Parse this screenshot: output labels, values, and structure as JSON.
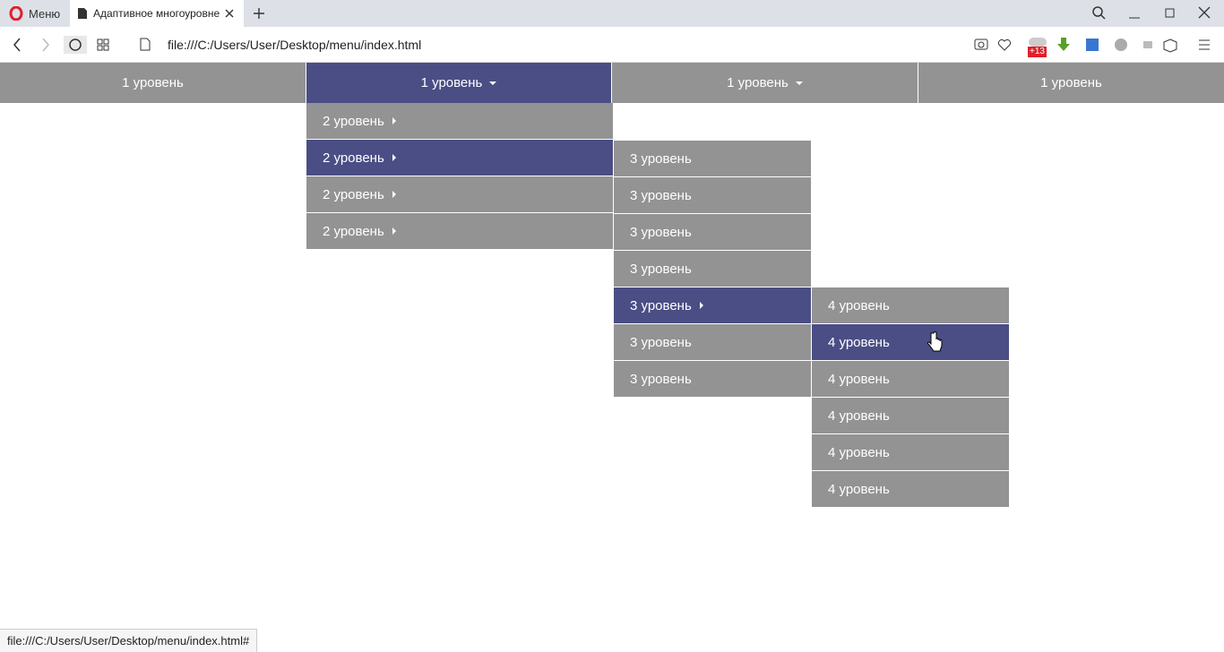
{
  "browser": {
    "menu_label": "Меню",
    "tab_title": "Адаптивное многоуровне",
    "url": "file:///C:/Users/User/Desktop/menu/index.html",
    "badge": "+13",
    "status_url": "file:///C:/Users/User/Desktop/menu/index.html#"
  },
  "menu": {
    "level1": [
      {
        "label": "1 уровень",
        "active": false
      },
      {
        "label": "1 уровень",
        "active": true,
        "arrow": "down"
      },
      {
        "label": "1 уровень",
        "active": false,
        "arrow": "down"
      },
      {
        "label": "1 уровень",
        "active": false
      }
    ],
    "level2": [
      {
        "label": "2 уровень",
        "active": false,
        "arrow": "right"
      },
      {
        "label": "2 уровень",
        "active": true,
        "arrow": "right"
      },
      {
        "label": "2 уровень",
        "active": false,
        "arrow": "right"
      },
      {
        "label": "2 уровень",
        "active": false,
        "arrow": "right"
      }
    ],
    "level3": [
      {
        "label": "3 уровень",
        "active": false
      },
      {
        "label": "3 уровень",
        "active": false
      },
      {
        "label": "3 уровень",
        "active": false
      },
      {
        "label": "3 уровень",
        "active": false
      },
      {
        "label": "3 уровень",
        "active": true,
        "arrow": "right"
      },
      {
        "label": "3 уровень",
        "active": false
      },
      {
        "label": "3 уровень",
        "active": false
      }
    ],
    "level4": [
      {
        "label": "4 уровень",
        "active": false
      },
      {
        "label": "4 уровень",
        "active": true
      },
      {
        "label": "4 уровень",
        "active": false
      },
      {
        "label": "4 уровень",
        "active": false
      },
      {
        "label": "4 уровень",
        "active": false
      },
      {
        "label": "4 уровень",
        "active": false
      }
    ]
  }
}
